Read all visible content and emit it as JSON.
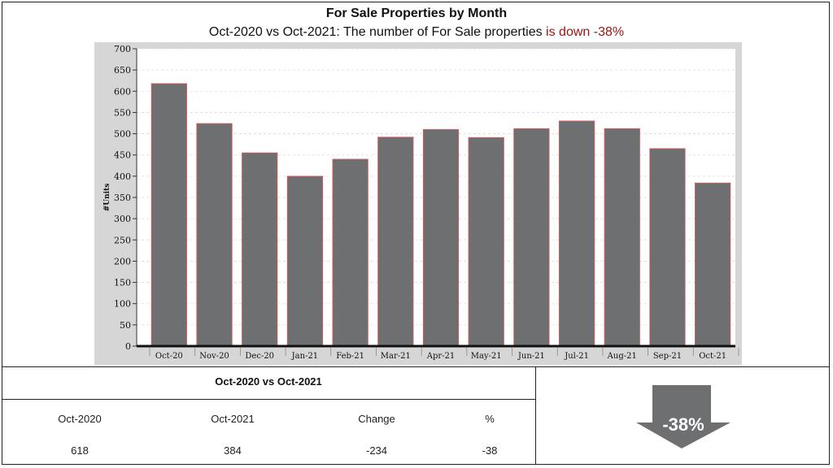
{
  "header": {
    "title": "For Sale Properties by Month",
    "subtitle_prefix": "Oct-2020 vs Oct-2021: The number of For Sale properties",
    "subtitle_highlight": "is down -38%",
    "highlight_color": "#9a1212"
  },
  "chart_data": {
    "type": "bar",
    "title": "For Sale Properties by Month",
    "xlabel": "",
    "ylabel": "#Units",
    "categories": [
      "Oct-20",
      "Nov-20",
      "Dec-20",
      "Jan-21",
      "Feb-21",
      "Mar-21",
      "Apr-21",
      "May-21",
      "Jun-21",
      "Jul-21",
      "Aug-21",
      "Sep-21",
      "Oct-21"
    ],
    "values": [
      618,
      524,
      455,
      400,
      440,
      492,
      510,
      491,
      512,
      530,
      512,
      465,
      384
    ],
    "ylim": [
      0,
      700
    ],
    "yticks": [
      0,
      50,
      100,
      150,
      200,
      250,
      300,
      350,
      400,
      450,
      500,
      550,
      600,
      650,
      700
    ],
    "grid": true,
    "bar_color": "#6d6f71",
    "bar_edge_color": "#e05a5a",
    "plot_background": "#ffffff",
    "panel_background": "#d6d6d6"
  },
  "table": {
    "heading": "Oct-2020 vs Oct-2021",
    "columns": [
      "Oct-2020",
      "Oct-2021",
      "Change",
      "%"
    ],
    "values": [
      "618",
      "384",
      "-234",
      "-38"
    ]
  },
  "indicator": {
    "label": "-38%",
    "icon": "down-arrow-icon",
    "color": "#6d6f71"
  }
}
